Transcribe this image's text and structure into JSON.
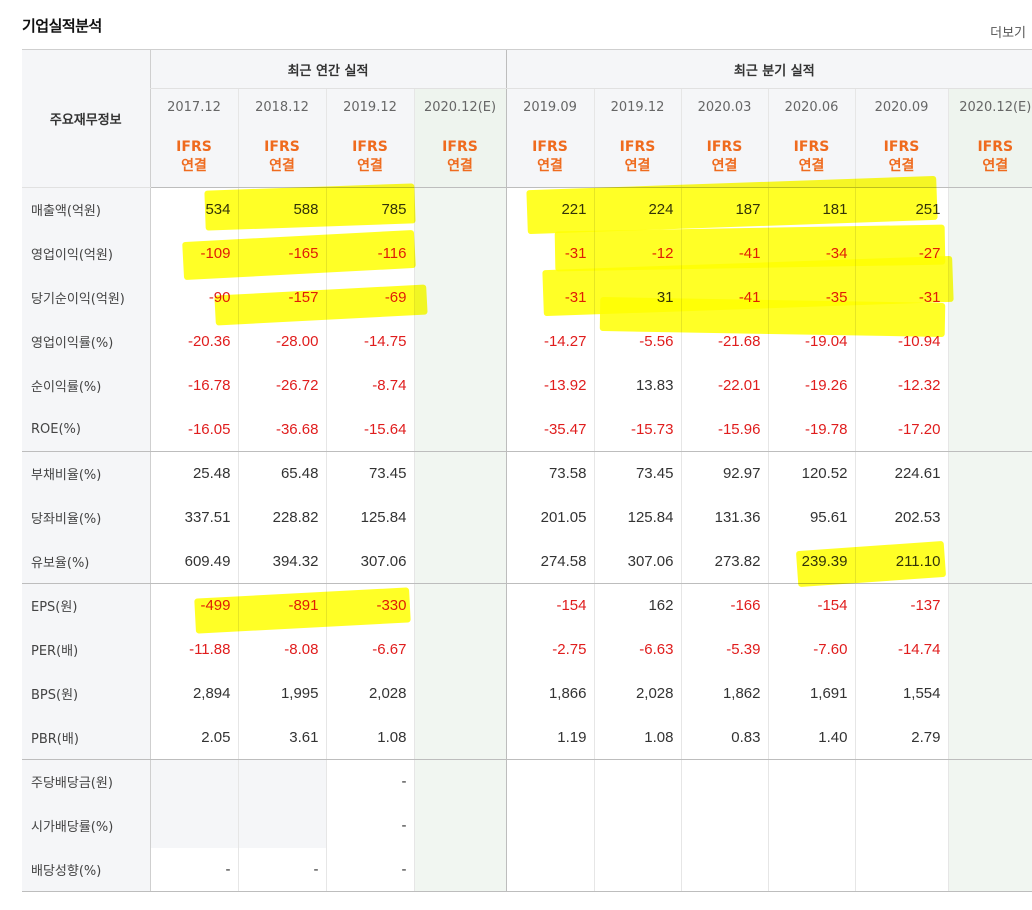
{
  "header": {
    "title": "기업실적분석",
    "more_label": "더보기"
  },
  "table": {
    "label_head": "주요재무정보",
    "annual_head": "최근 연간 실적",
    "quarter_head": "최근 분기 실적",
    "annual_periods": [
      "2017.12",
      "2018.12",
      "2019.12",
      "2020.12(E)"
    ],
    "quarter_periods": [
      "2019.09",
      "2019.12",
      "2020.03",
      "2020.06",
      "2020.09",
      "2020.12(E)"
    ],
    "ifrs_top": "IFRS",
    "ifrs_bottom": "연결",
    "rows": [
      {
        "label": "매출액(억원)",
        "values": [
          "534",
          "588",
          "785",
          "",
          "221",
          "224",
          "187",
          "181",
          "251",
          ""
        ]
      },
      {
        "label": "영업이익(억원)",
        "values": [
          "-109",
          "-165",
          "-116",
          "",
          "-31",
          "-12",
          "-41",
          "-34",
          "-27",
          ""
        ]
      },
      {
        "label": "당기순이익(억원)",
        "values": [
          "-90",
          "-157",
          "-69",
          "",
          "-31",
          "31",
          "-41",
          "-35",
          "-31",
          ""
        ]
      },
      {
        "label": "영업이익률(%)",
        "values": [
          "-20.36",
          "-28.00",
          "-14.75",
          "",
          "-14.27",
          "-5.56",
          "-21.68",
          "-19.04",
          "-10.94",
          ""
        ]
      },
      {
        "label": "순이익률(%)",
        "values": [
          "-16.78",
          "-26.72",
          "-8.74",
          "",
          "-13.92",
          "13.83",
          "-22.01",
          "-19.26",
          "-12.32",
          ""
        ]
      },
      {
        "label": "ROE(%)",
        "values": [
          "-16.05",
          "-36.68",
          "-15.64",
          "",
          "-35.47",
          "-15.73",
          "-15.96",
          "-19.78",
          "-17.20",
          ""
        ]
      },
      {
        "label": "부채비율(%)",
        "values": [
          "25.48",
          "65.48",
          "73.45",
          "",
          "73.58",
          "73.45",
          "92.97",
          "120.52",
          "224.61",
          ""
        ]
      },
      {
        "label": "당좌비율(%)",
        "values": [
          "337.51",
          "228.82",
          "125.84",
          "",
          "201.05",
          "125.84",
          "131.36",
          "95.61",
          "202.53",
          ""
        ]
      },
      {
        "label": "유보율(%)",
        "values": [
          "609.49",
          "394.32",
          "307.06",
          "",
          "274.58",
          "307.06",
          "273.82",
          "239.39",
          "211.10",
          ""
        ]
      },
      {
        "label": "EPS(원)",
        "values": [
          "-499",
          "-891",
          "-330",
          "",
          "-154",
          "162",
          "-166",
          "-154",
          "-137",
          ""
        ]
      },
      {
        "label": "PER(배)",
        "values": [
          "-11.88",
          "-8.08",
          "-6.67",
          "",
          "-2.75",
          "-6.63",
          "-5.39",
          "-7.60",
          "-14.74",
          ""
        ]
      },
      {
        "label": "BPS(원)",
        "values": [
          "2,894",
          "1,995",
          "2,028",
          "",
          "1,866",
          "2,028",
          "1,862",
          "1,691",
          "1,554",
          ""
        ]
      },
      {
        "label": "PBR(배)",
        "values": [
          "2.05",
          "3.61",
          "1.08",
          "",
          "1.19",
          "1.08",
          "0.83",
          "1.40",
          "2.79",
          ""
        ]
      },
      {
        "label": "주당배당금(원)",
        "values": [
          "",
          "",
          "-",
          "",
          "",
          "",
          "",
          "",
          "",
          ""
        ]
      },
      {
        "label": "시가배당률(%)",
        "values": [
          "",
          "",
          "-",
          "",
          "",
          "",
          "",
          "",
          "",
          ""
        ]
      },
      {
        "label": "배당성향(%)",
        "values": [
          "-",
          "-",
          "-",
          "",
          "",
          "",
          "",
          "",
          "",
          ""
        ]
      }
    ]
  },
  "colors": {
    "negative": "#e01d1d",
    "ifrs": "#ef6b1e",
    "highlight": "#ffff00",
    "estimate_bg": "#f1f6f1"
  }
}
